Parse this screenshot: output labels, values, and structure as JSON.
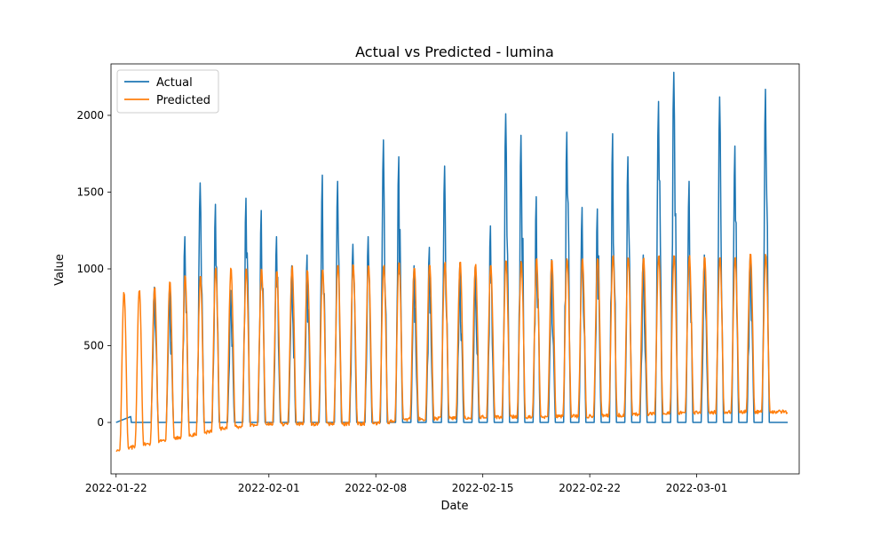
{
  "chart_data": {
    "type": "line",
    "title": "Actual vs Predicted - lumina",
    "xlabel": "Date",
    "ylabel": "Value",
    "x_ticks": [
      "2022-01-22",
      "2022-02-01",
      "2022-02-08",
      "2022-02-15",
      "2022-02-22",
      "2022-03-01"
    ],
    "y_ticks": [
      0,
      500,
      1000,
      1500,
      2000
    ],
    "xlim": [
      "2022-01-21T16:00",
      "2022-03-07T17:00"
    ],
    "ylim": [
      -335,
      2335
    ],
    "grid": false,
    "legend_position": "top-left",
    "colors": {
      "actual": "#1f77b4",
      "predicted": "#ff7f0e"
    },
    "series": [
      {
        "name": "Actual",
        "note_shape": "daily pulse: zero baseline, peak mid-day",
        "start": "2022-01-22T00:00",
        "end": "2022-03-06T23:00",
        "ramp_at_start": [
          [
            "2022-01-22",
            0
          ],
          [
            "2022-01-23",
            40
          ]
        ],
        "daily_peaks": [
          [
            "2022-01-24",
            880
          ],
          [
            "2022-01-25",
            890
          ],
          [
            "2022-01-26",
            1210
          ],
          [
            "2022-01-27",
            1560
          ],
          [
            "2022-01-28",
            1420
          ],
          [
            "2022-01-29",
            860
          ],
          [
            "2022-01-30",
            1460
          ],
          [
            "2022-01-31",
            1380
          ],
          [
            "2022-02-01",
            1210
          ],
          [
            "2022-02-02",
            1020
          ],
          [
            "2022-02-03",
            1090
          ],
          [
            "2022-02-04",
            1610
          ],
          [
            "2022-02-05",
            1570
          ],
          [
            "2022-02-06",
            1160
          ],
          [
            "2022-02-07",
            1210
          ],
          [
            "2022-02-08",
            1840
          ],
          [
            "2022-02-09",
            1730
          ],
          [
            "2022-02-10",
            1020
          ],
          [
            "2022-02-11",
            1140
          ],
          [
            "2022-02-12",
            1670
          ],
          [
            "2022-02-13",
            1040
          ],
          [
            "2022-02-14",
            1010
          ],
          [
            "2022-02-15",
            1280
          ],
          [
            "2022-02-16",
            2010
          ],
          [
            "2022-02-17",
            1870
          ],
          [
            "2022-02-18",
            1470
          ],
          [
            "2022-02-19",
            1060
          ],
          [
            "2022-02-20",
            1890
          ],
          [
            "2022-02-21",
            1400
          ],
          [
            "2022-02-22",
            1390
          ],
          [
            "2022-02-23",
            1880
          ],
          [
            "2022-02-24",
            1730
          ],
          [
            "2022-02-25",
            1090
          ],
          [
            "2022-02-26",
            2090
          ],
          [
            "2022-02-27",
            2280
          ],
          [
            "2022-02-28",
            1570
          ],
          [
            "2022-03-01",
            1090
          ],
          [
            "2022-03-02",
            2120
          ],
          [
            "2022-03-03",
            1800
          ],
          [
            "2022-03-04",
            1090
          ],
          [
            "2022-03-05",
            2170
          ]
        ]
      },
      {
        "name": "Predicted",
        "note_shape": "smooth daily oscillation",
        "start": "2022-01-22T00:00",
        "end": "2022-03-06T23:00",
        "daily_baselines": [
          [
            "2022-01-22",
            -185
          ],
          [
            "2022-01-25",
            -120
          ],
          [
            "2022-01-29",
            -40
          ],
          [
            "2022-02-01",
            -10
          ],
          [
            "2022-02-08",
            -10
          ],
          [
            "2022-02-10",
            20
          ],
          [
            "2022-02-15",
            35
          ],
          [
            "2022-02-22",
            40
          ],
          [
            "2022-03-01",
            65
          ],
          [
            "2022-03-06",
            70
          ]
        ],
        "daily_peaks": [
          [
            "2022-01-22",
            850
          ],
          [
            "2022-01-23",
            870
          ],
          [
            "2022-01-24",
            880
          ],
          [
            "2022-01-25",
            920
          ],
          [
            "2022-01-26",
            960
          ],
          [
            "2022-01-27",
            960
          ],
          [
            "2022-01-28",
            1010
          ],
          [
            "2022-01-29",
            1010
          ],
          [
            "2022-01-30",
            1000
          ],
          [
            "2022-01-31",
            1000
          ],
          [
            "2022-02-01",
            1000
          ],
          [
            "2022-02-02",
            1020
          ],
          [
            "2022-02-03",
            1000
          ],
          [
            "2022-02-04",
            1000
          ],
          [
            "2022-02-05",
            1040
          ],
          [
            "2022-02-06",
            1030
          ],
          [
            "2022-02-07",
            1030
          ],
          [
            "2022-02-08",
            1030
          ],
          [
            "2022-02-09",
            1050
          ],
          [
            "2022-02-10",
            1020
          ],
          [
            "2022-02-11",
            1040
          ],
          [
            "2022-02-12",
            1050
          ],
          [
            "2022-02-13",
            1050
          ],
          [
            "2022-02-14",
            1030
          ],
          [
            "2022-02-15",
            1040
          ],
          [
            "2022-02-16",
            1060
          ],
          [
            "2022-02-17",
            1050
          ],
          [
            "2022-02-18",
            1070
          ],
          [
            "2022-02-19",
            1070
          ],
          [
            "2022-02-20",
            1070
          ],
          [
            "2022-02-21",
            1070
          ],
          [
            "2022-02-22",
            1080
          ],
          [
            "2022-02-23",
            1090
          ],
          [
            "2022-02-24",
            1080
          ],
          [
            "2022-02-25",
            1080
          ],
          [
            "2022-02-26",
            1090
          ],
          [
            "2022-02-27",
            1090
          ],
          [
            "2022-02-28",
            1090
          ],
          [
            "2022-03-01",
            1080
          ],
          [
            "2022-03-02",
            1090
          ],
          [
            "2022-03-03",
            1090
          ],
          [
            "2022-03-04",
            1100
          ],
          [
            "2022-03-05",
            1100
          ]
        ]
      }
    ]
  }
}
